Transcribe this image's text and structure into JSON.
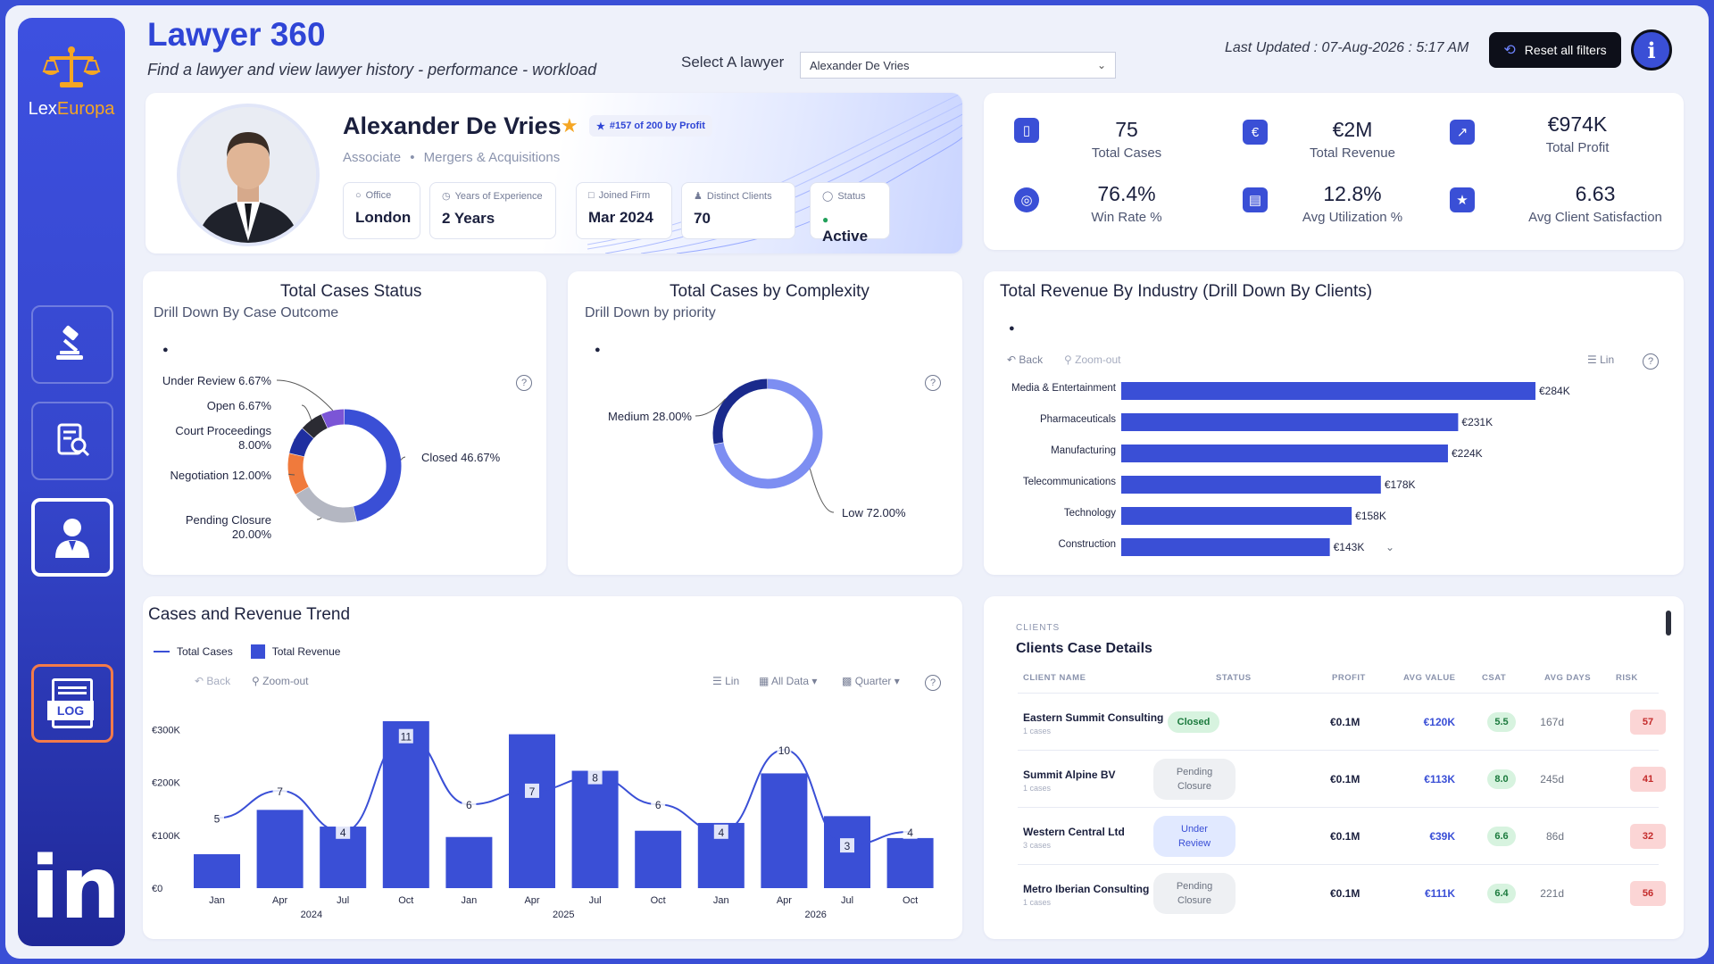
{
  "app": {
    "title": "Lawyer 360",
    "subtitle": "Find a lawyer and view lawyer history - performance - workload",
    "logo_text_a": "Lex",
    "logo_text_b": "Europa"
  },
  "selector": {
    "label": "Select A lawyer",
    "value": "Alexander De Vries"
  },
  "last_updated": "Last Updated : 07-Aug-2026 : 5:17 AM",
  "reset_label": "Reset all filters",
  "info_label": "i",
  "sidebar": {
    "linkedin": "in",
    "log": "LOG"
  },
  "profile": {
    "name": "Alexander De Vries",
    "rank": "#157 of 200 by Profit",
    "role": "Associate",
    "practice": "Mergers & Acquisitions",
    "sep": "•",
    "chips": [
      {
        "title": "Office",
        "value": "London"
      },
      {
        "title": "Years of Experience",
        "value": "2 Years"
      },
      {
        "title": "Joined Firm",
        "value": "Mar 2024"
      },
      {
        "title": "Distinct Clients",
        "value": "70"
      },
      {
        "title": "Status",
        "value": "Active"
      }
    ]
  },
  "kpis": [
    {
      "value": "75",
      "label": "Total Cases",
      "icon": "folder-icon"
    },
    {
      "value": "€2M",
      "label": "Total Revenue",
      "icon": "euro-icon"
    },
    {
      "value": "€974K",
      "label": "Total Profit",
      "icon": "chart-up-icon"
    },
    {
      "value": "76.4%",
      "label": "Win Rate %",
      "icon": "target-icon"
    },
    {
      "value": "12.8%",
      "label": "Avg Utilization %",
      "icon": "document-icon"
    },
    {
      "value": "6.63",
      "label": "Avg Client Satisfaction",
      "icon": "star-icon"
    }
  ],
  "status_chart": {
    "title": "Total Cases Status",
    "subtitle": "Drill Down By Case Outcome"
  },
  "complexity_chart": {
    "title": "Total Cases by Complexity",
    "subtitle": "Drill Down by priority"
  },
  "industry_chart": {
    "title": "Total Revenue By Industry (Drill Down By Clients)",
    "back": "Back",
    "zoom": "Zoom-out",
    "lin": "Lin"
  },
  "trend_chart": {
    "title": "Cases and Revenue Trend",
    "legend_cases": "Total Cases",
    "legend_revenue": "Total Revenue",
    "back": "Back",
    "zoom": "Zoom-out",
    "lin": "Lin",
    "all_data": "All Data",
    "quarter": "Quarter"
  },
  "chart_data": [
    {
      "type": "pie",
      "title": "Total Cases Status",
      "slices": [
        {
          "label": "Closed",
          "value": 46.67,
          "display": "Closed 46.67%",
          "color": "#3a4fd6"
        },
        {
          "label": "Pending Closure",
          "value": 20.0,
          "display": "Pending Closure 20.00%",
          "color": "#b4b7c2"
        },
        {
          "label": "Negotiation",
          "value": 12.0,
          "display": "Negotiation 12.00%",
          "color": "#f07a3c"
        },
        {
          "label": "Court Proceedings",
          "value": 8.0,
          "display": "Court Proceedings 8.00%",
          "color": "#1f2fa0"
        },
        {
          "label": "Open",
          "value": 6.67,
          "display": "Open 6.67%",
          "color": "#2b2b33"
        },
        {
          "label": "Under Review",
          "value": 6.67,
          "display": "Under Review 6.67%",
          "color": "#7b55d6"
        }
      ]
    },
    {
      "type": "pie",
      "title": "Total Cases by Complexity",
      "slices": [
        {
          "label": "Low",
          "value": 72.0,
          "display": "Low 72.00%",
          "color": "#7d8ef2"
        },
        {
          "label": "Medium",
          "value": 28.0,
          "display": "Medium 28.00%",
          "color": "#1a2a8c"
        }
      ]
    },
    {
      "type": "bar",
      "title": "Total Revenue By Industry (Drill Down By Clients)",
      "categories": [
        "Media & Entertainment",
        "Pharmaceuticals",
        "Manufacturing",
        "Telecommunications",
        "Technology",
        "Construction"
      ],
      "values": [
        284,
        231,
        224,
        178,
        158,
        143
      ],
      "labels": [
        "€284K",
        "€231K",
        "€224K",
        "€178K",
        "€158K",
        "€143K"
      ],
      "unit": "K€"
    },
    {
      "type": "bar",
      "title": "Cases and Revenue Trend",
      "x": [
        "Jan 2024",
        "Apr 2024",
        "Jul 2024",
        "Oct 2024",
        "Jan 2025",
        "Apr 2025",
        "Jul 2025",
        "Oct 2025",
        "Jan 2026",
        "Apr 2026",
        "Jul 2026",
        "Oct 2026"
      ],
      "tick_labels": [
        "Jan",
        "Apr",
        "Jul",
        "Oct",
        "Jan",
        "Apr",
        "Jul",
        "Oct",
        "Jan",
        "Apr",
        "Jul",
        "Oct"
      ],
      "year_labels": [
        "2024",
        "2025",
        "2026"
      ],
      "yticks": [
        "€0",
        "€100K",
        "€200K",
        "€300K"
      ],
      "ylim": [
        0,
        320
      ],
      "series": [
        {
          "name": "Total Revenue",
          "type": "bar",
          "values": [
            65,
            150,
            118,
            320,
            98,
            295,
            225,
            110,
            125,
            220,
            138,
            96
          ]
        },
        {
          "name": "Total Cases",
          "type": "line",
          "values": [
            5,
            7,
            4,
            11,
            6,
            7,
            8,
            6,
            4,
            10,
            3,
            4
          ]
        }
      ]
    }
  ],
  "table": {
    "section_label": "CLIENTS",
    "title": "Clients Case Details",
    "headers": [
      "CLIENT NAME",
      "STATUS",
      "PROFIT",
      "AVG VALUE",
      "CSAT",
      "AVG DAYS",
      "RISK"
    ],
    "rows": [
      {
        "name": "Eastern Summit Consulting",
        "cases": "1 cases",
        "status": "Closed",
        "status_kind": "closed",
        "profit": "€0.1M",
        "avg_value": "€120K",
        "csat": "5.5",
        "days": "167d",
        "risk": "57"
      },
      {
        "name": "Summit Alpine BV",
        "cases": "1 cases",
        "status": "Pending Closure",
        "status_kind": "pending",
        "profit": "€0.1M",
        "avg_value": "€113K",
        "csat": "8.0",
        "days": "245d",
        "risk": "41"
      },
      {
        "name": "Western Central Ltd",
        "cases": "3 cases",
        "status": "Under Review",
        "status_kind": "review",
        "profit": "€0.1M",
        "avg_value": "€39K",
        "csat": "6.6",
        "days": "86d",
        "risk": "32"
      },
      {
        "name": "Metro Iberian Consulting",
        "cases": "1 cases",
        "status": "Pending Closure",
        "status_kind": "pending",
        "profit": "€0.1M",
        "avg_value": "€111K",
        "csat": "6.4",
        "days": "221d",
        "risk": "56"
      }
    ]
  }
}
